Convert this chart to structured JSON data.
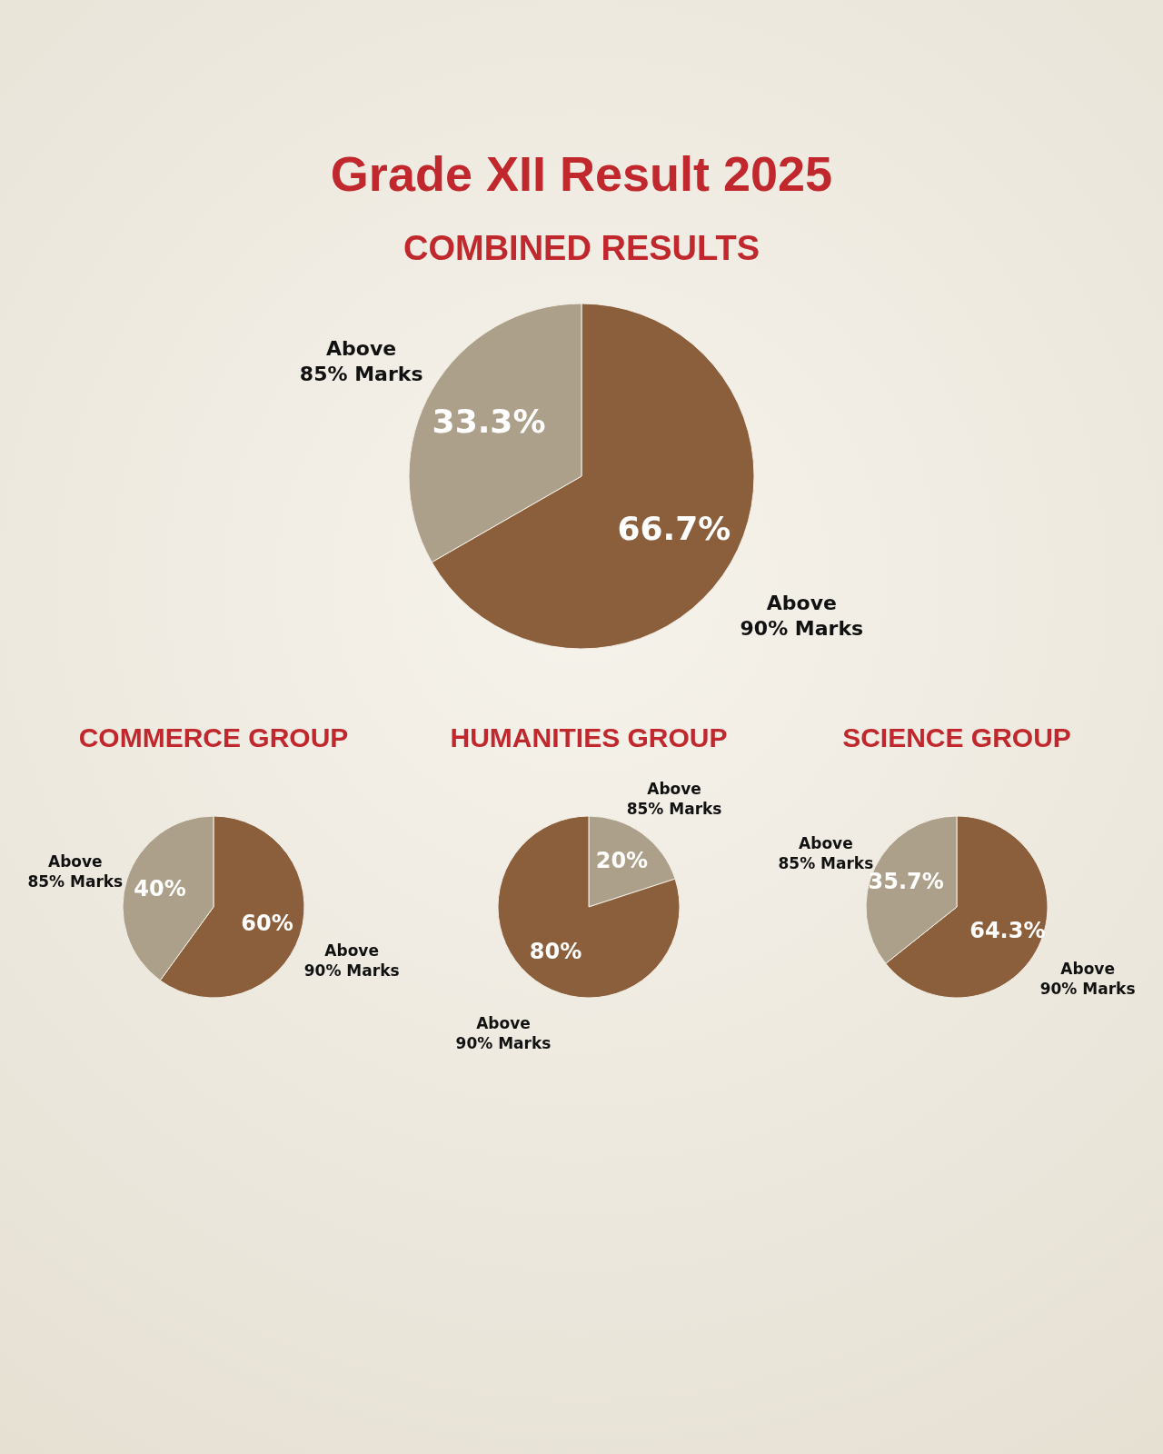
{
  "chart_data": [
    {
      "type": "pie",
      "title": "Grade XII Result 2025",
      "subtitle": "COMBINED RESULTS",
      "categories": [
        "Above 90% Marks",
        "Above 85% Marks"
      ],
      "values": [
        66.7,
        33.3
      ],
      "colors": [
        "#8b5e3c",
        "#ada08a"
      ],
      "value_labels": [
        "66.7%",
        "33.3%"
      ]
    },
    {
      "type": "pie",
      "title": "COMMERCE GROUP",
      "categories": [
        "Above 90% Marks",
        "Above 85% Marks"
      ],
      "values": [
        60,
        40
      ],
      "colors": [
        "#8b5e3c",
        "#ada08a"
      ],
      "value_labels": [
        "60%",
        "40%"
      ]
    },
    {
      "type": "pie",
      "title": "HUMANITIES GROUP",
      "categories": [
        "Above 85% Marks",
        "Above 90% Marks"
      ],
      "values": [
        20,
        80
      ],
      "colors": [
        "#ada08a",
        "#8b5e3c"
      ],
      "value_labels": [
        "20%",
        "80%"
      ]
    },
    {
      "type": "pie",
      "title": "SCIENCE GROUP",
      "categories": [
        "Above 90% Marks",
        "Above 85% Marks"
      ],
      "values": [
        64.3,
        35.7
      ],
      "colors": [
        "#8b5e3c",
        "#ada08a"
      ],
      "value_labels": [
        "64.3%",
        "35.7%"
      ]
    }
  ]
}
